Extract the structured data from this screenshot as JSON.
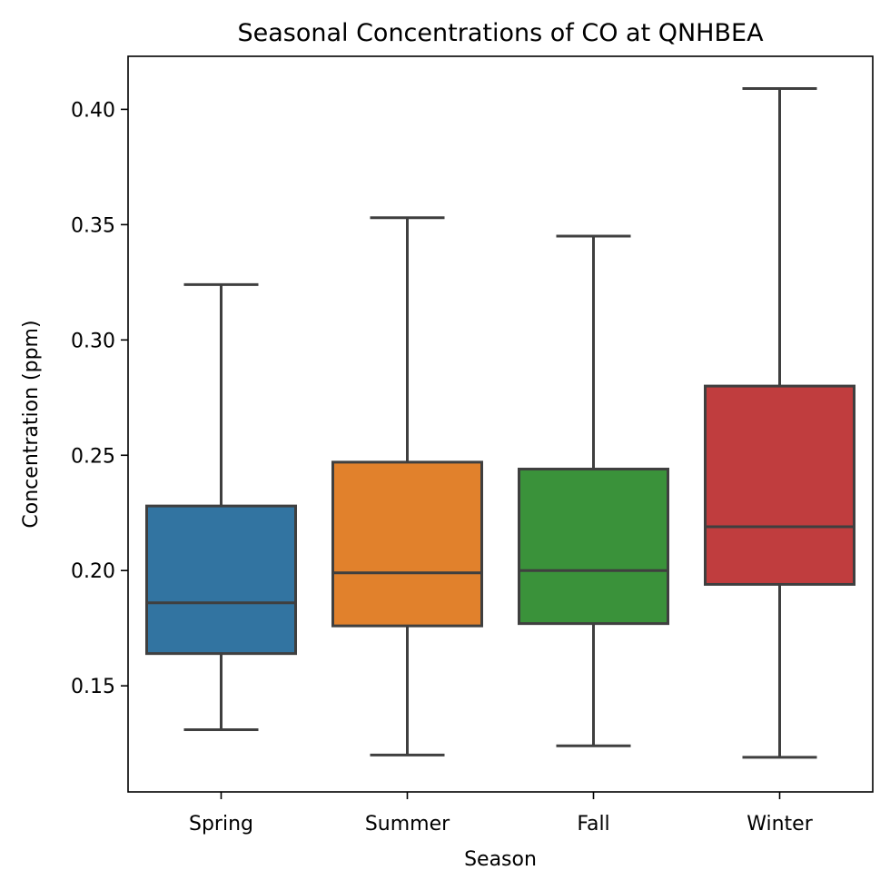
{
  "chart_data": {
    "type": "box",
    "title": "Seasonal Concentrations of CO at QNHBEA",
    "xlabel": "Season",
    "ylabel": "Concentration (ppm)",
    "ylim": [
      0.104,
      0.423
    ],
    "yticks": [
      "0.15",
      "0.20",
      "0.25",
      "0.30",
      "0.35",
      "0.40"
    ],
    "grid": false,
    "categories": [
      "Spring",
      "Summer",
      "Fall",
      "Winter"
    ],
    "colors": [
      "#3274a1",
      "#e1812c",
      "#3a923a",
      "#c03d3e"
    ],
    "edge_color": "#3f3f3f",
    "boxes": [
      {
        "label": "Spring",
        "whisker_low": 0.131,
        "q1": 0.164,
        "median": 0.186,
        "q3": 0.228,
        "whisker_high": 0.324
      },
      {
        "label": "Summer",
        "whisker_low": 0.12,
        "q1": 0.176,
        "median": 0.199,
        "q3": 0.247,
        "whisker_high": 0.353
      },
      {
        "label": "Fall",
        "whisker_low": 0.124,
        "q1": 0.177,
        "median": 0.2,
        "q3": 0.244,
        "whisker_high": 0.345
      },
      {
        "label": "Winter",
        "whisker_low": 0.119,
        "q1": 0.194,
        "median": 0.219,
        "q3": 0.28,
        "whisker_high": 0.409
      }
    ]
  }
}
